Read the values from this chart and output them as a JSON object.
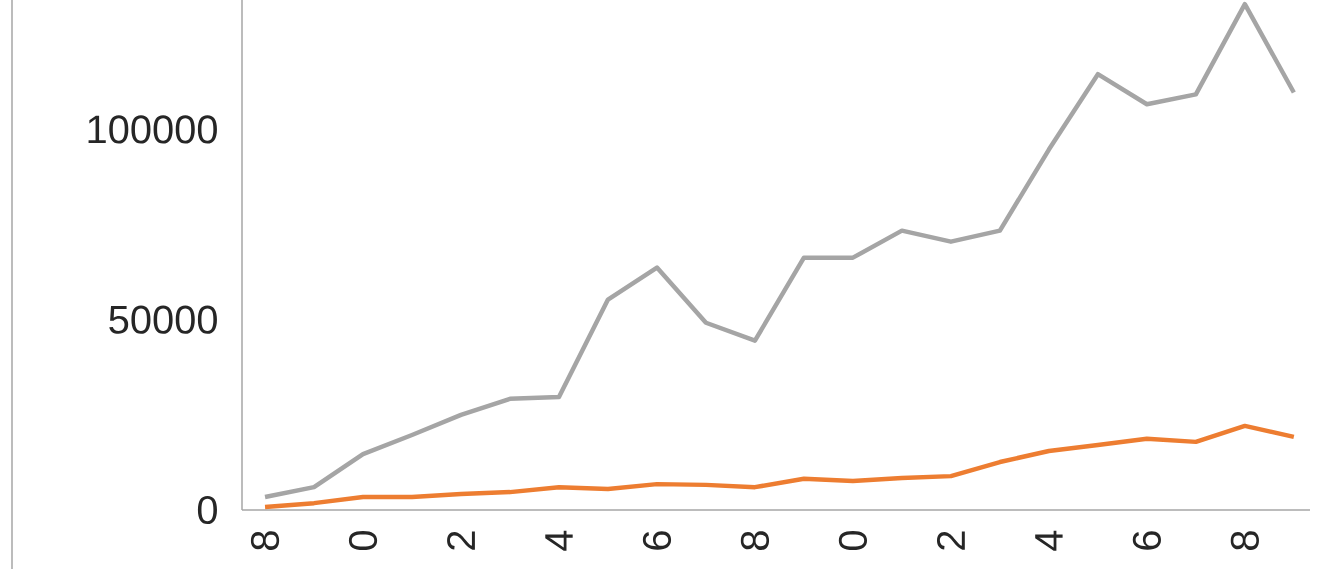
{
  "chart_data": {
    "type": "line",
    "categories": [
      "8",
      null,
      "0",
      null,
      "2",
      null,
      "4",
      null,
      "6",
      null,
      "8",
      null,
      "0",
      null,
      "2",
      null,
      "4",
      null,
      "6",
      null,
      "8",
      null
    ],
    "ylim": [
      0,
      134000
    ],
    "yticks": [
      0,
      50000,
      100000
    ],
    "series": [
      {
        "color": "#a5a5a5",
        "values": [
          3400,
          6000,
          14700,
          19700,
          25000,
          29200,
          29700,
          55300,
          63700,
          49200,
          44500,
          66300,
          66300,
          73400,
          70500,
          73400,
          94700,
          114500,
          106600,
          109200,
          132900,
          109700
        ]
      },
      {
        "color": "#ed7d31",
        "values": [
          800,
          1800,
          3400,
          3400,
          4200,
          4700,
          6000,
          5500,
          6800,
          6600,
          6000,
          8200,
          7600,
          8400,
          8900,
          12600,
          15500,
          17100,
          18700,
          17900,
          22100,
          19200
        ]
      }
    ]
  }
}
